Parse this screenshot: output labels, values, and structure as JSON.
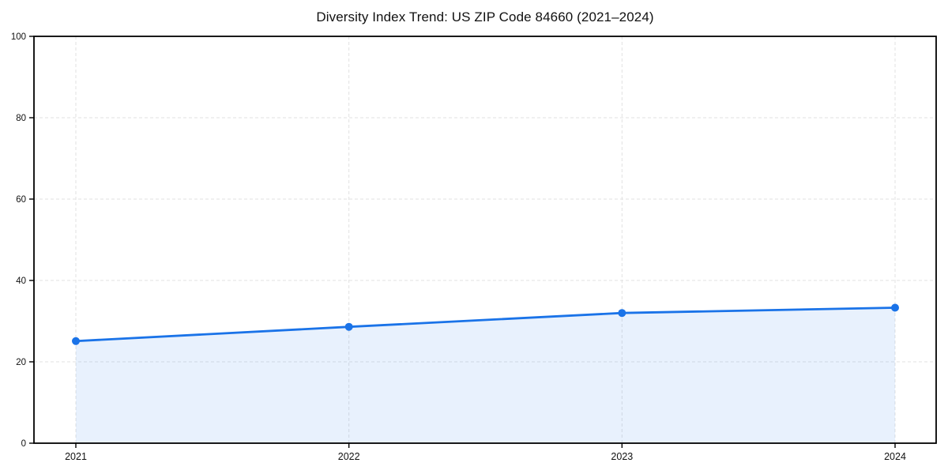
{
  "page": {
    "background": "#ffffff"
  },
  "chart_data": {
    "type": "line",
    "title": "Diversity Index Trend: US ZIP Code 84660 (2021–2024)",
    "categories": [
      "2021",
      "2022",
      "2023",
      "2024"
    ],
    "series": [
      {
        "name": "Diversity Index",
        "values": [
          25.1,
          28.6,
          32.0,
          33.3
        ]
      }
    ],
    "xlabel": "",
    "ylabel": "",
    "ylim": [
      0,
      100
    ],
    "yticks": [
      0,
      20,
      40,
      60,
      80,
      100
    ],
    "grid": "dashed-both-axes",
    "legend": "none",
    "area_fill": true,
    "marker": "circle",
    "colors": {
      "line": "#1a73e8",
      "marker": "#1a73e8",
      "fill": "rgba(26,115,232,0.10)",
      "grid": "#e2e2e2",
      "axis": "#000000",
      "tick_text": "#111111",
      "title_text": "#111111"
    }
  }
}
